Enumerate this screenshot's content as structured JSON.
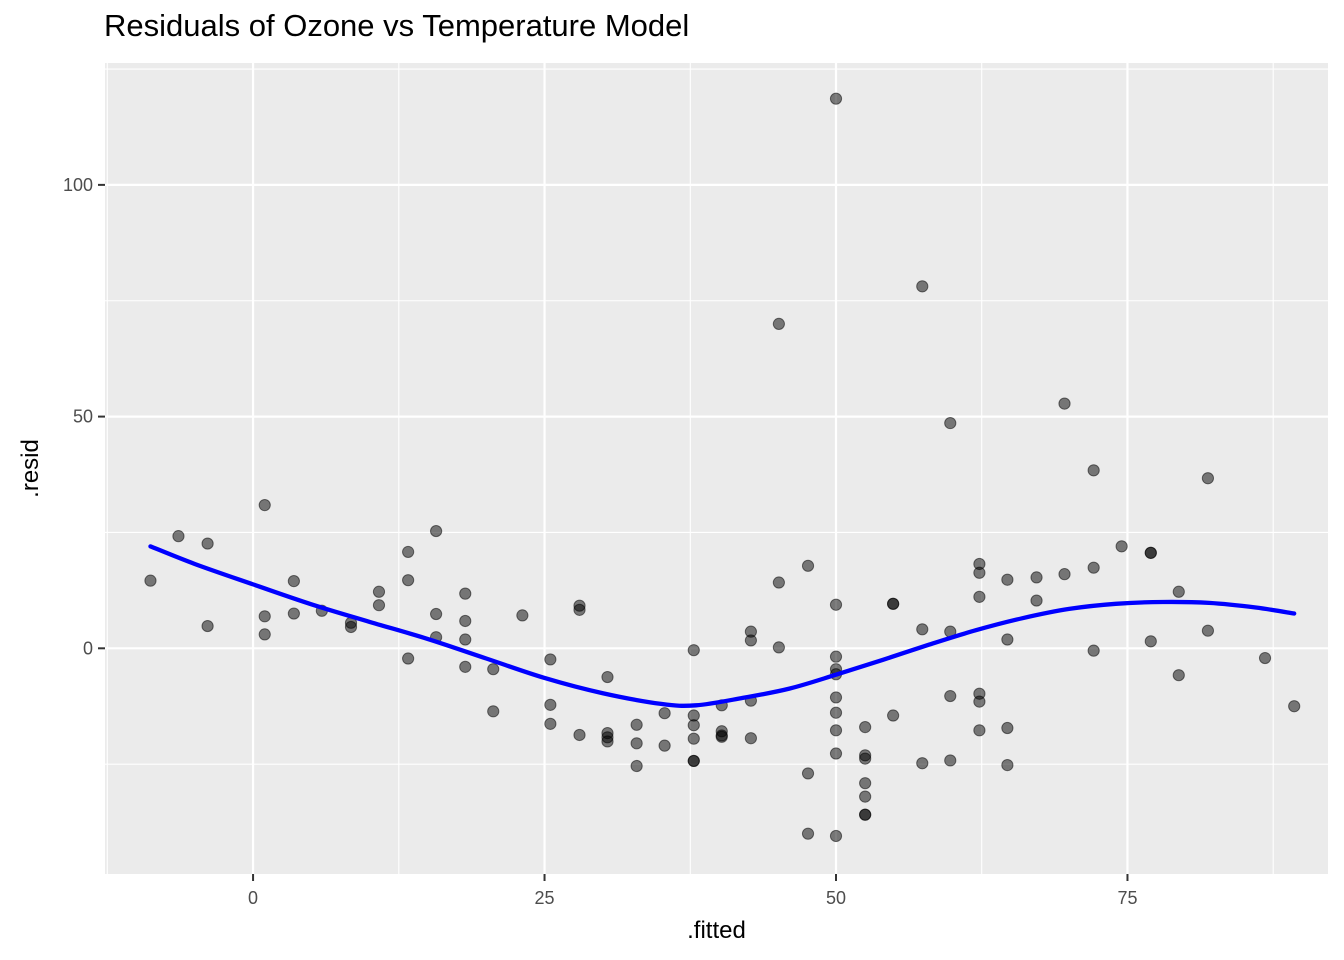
{
  "chart_data": {
    "type": "scatter",
    "title": "Residuals of Ozone vs Temperature Model",
    "xlabel": ".fitted",
    "ylabel": ".resid",
    "xlim": [
      -12.7,
      92.2
    ],
    "ylim": [
      -48.7,
      126.3
    ],
    "x_ticks": [
      0,
      25,
      50,
      75
    ],
    "y_ticks": [
      0,
      50,
      100
    ],
    "x_tick_labels": [
      "0",
      "25",
      "50",
      "75"
    ],
    "y_tick_labels": [
      "0",
      "50",
      "100"
    ],
    "grid": true,
    "colors": {
      "panel": "#ebebeb",
      "grid": "#ffffff",
      "points": "#000000",
      "smooth_line": "#0000ff"
    },
    "point_opacity": 0.5,
    "series": [
      {
        "type": "points",
        "points": [
          [
            -8.8,
            14.6
          ],
          [
            -6.4,
            24.2
          ],
          [
            -3.9,
            22.6
          ],
          [
            -3.9,
            4.8
          ],
          [
            1.0,
            30.9
          ],
          [
            1.0,
            6.9
          ],
          [
            1.0,
            3.0
          ],
          [
            3.5,
            14.5
          ],
          [
            3.5,
            7.5
          ],
          [
            5.9,
            8.1
          ],
          [
            8.4,
            5.5
          ],
          [
            8.4,
            4.6
          ],
          [
            10.8,
            12.2
          ],
          [
            10.8,
            9.3
          ],
          [
            13.3,
            20.8
          ],
          [
            13.3,
            14.7
          ],
          [
            13.3,
            -2.2
          ],
          [
            15.7,
            25.3
          ],
          [
            15.7,
            7.4
          ],
          [
            15.7,
            2.4
          ],
          [
            18.2,
            11.8
          ],
          [
            18.2,
            5.9
          ],
          [
            18.2,
            1.9
          ],
          [
            18.2,
            -4.0
          ],
          [
            20.6,
            -4.5
          ],
          [
            20.6,
            -13.6
          ],
          [
            23.1,
            7.1
          ],
          [
            25.5,
            -2.4
          ],
          [
            25.5,
            -12.2
          ],
          [
            25.5,
            -16.3
          ],
          [
            28.0,
            9.2
          ],
          [
            28.0,
            8.3
          ],
          [
            28.0,
            -18.7
          ],
          [
            30.4,
            -6.2
          ],
          [
            30.4,
            -18.3
          ],
          [
            30.4,
            -19.2
          ],
          [
            30.4,
            -20.1
          ],
          [
            32.9,
            -16.5
          ],
          [
            32.9,
            -20.5
          ],
          [
            32.9,
            -25.4
          ],
          [
            35.3,
            -14.0
          ],
          [
            35.3,
            -21.0
          ],
          [
            37.8,
            -0.4
          ],
          [
            37.8,
            -14.5
          ],
          [
            37.8,
            -16.6
          ],
          [
            37.8,
            -19.5
          ],
          [
            37.8,
            -24.3
          ],
          [
            37.8,
            -24.3
          ],
          [
            40.2,
            -12.3
          ],
          [
            40.2,
            -17.9
          ],
          [
            40.2,
            -18.8
          ],
          [
            40.2,
            -19.1
          ],
          [
            42.7,
            3.6
          ],
          [
            42.7,
            1.7
          ],
          [
            42.7,
            -11.3
          ],
          [
            42.7,
            -19.4
          ],
          [
            45.1,
            70.0
          ],
          [
            45.1,
            14.2
          ],
          [
            45.1,
            0.2
          ],
          [
            47.6,
            17.8
          ],
          [
            47.6,
            -27.0
          ],
          [
            47.6,
            -40.0
          ],
          [
            50.0,
            118.6
          ],
          [
            50.0,
            9.4
          ],
          [
            50.0,
            -1.8
          ],
          [
            50.0,
            -4.5
          ],
          [
            50.0,
            -5.6
          ],
          [
            50.0,
            -10.6
          ],
          [
            50.0,
            -13.9
          ],
          [
            50.0,
            -17.7
          ],
          [
            50.0,
            -22.7
          ],
          [
            50.0,
            -40.5
          ],
          [
            52.5,
            -17.0
          ],
          [
            52.5,
            -23.1
          ],
          [
            52.5,
            -23.8
          ],
          [
            52.5,
            -29.1
          ],
          [
            52.5,
            -32.0
          ],
          [
            52.5,
            -35.9
          ],
          [
            52.5,
            -35.9
          ],
          [
            54.9,
            9.6
          ],
          [
            54.9,
            9.6
          ],
          [
            54.9,
            -14.5
          ],
          [
            57.4,
            78.1
          ],
          [
            57.4,
            4.1
          ],
          [
            57.4,
            -24.8
          ],
          [
            59.8,
            48.6
          ],
          [
            59.8,
            3.6
          ],
          [
            59.8,
            -10.3
          ],
          [
            59.8,
            -24.2
          ],
          [
            62.3,
            18.2
          ],
          [
            62.3,
            16.3
          ],
          [
            62.3,
            11.1
          ],
          [
            62.3,
            -9.8
          ],
          [
            62.3,
            -11.5
          ],
          [
            62.3,
            -17.7
          ],
          [
            64.7,
            14.8
          ],
          [
            64.7,
            1.9
          ],
          [
            64.7,
            -17.2
          ],
          [
            64.7,
            -25.2
          ],
          [
            67.2,
            15.3
          ],
          [
            67.2,
            10.3
          ],
          [
            69.6,
            52.8
          ],
          [
            69.6,
            16.0
          ],
          [
            72.1,
            38.4
          ],
          [
            72.1,
            17.4
          ],
          [
            72.1,
            -0.5
          ],
          [
            74.5,
            22.0
          ],
          [
            77.0,
            20.6
          ],
          [
            77.0,
            20.6
          ],
          [
            77.0,
            1.5
          ],
          [
            79.4,
            12.2
          ],
          [
            79.4,
            -5.8
          ],
          [
            81.9,
            36.7
          ],
          [
            81.9,
            3.8
          ],
          [
            86.8,
            -2.1
          ],
          [
            89.3,
            -12.5
          ]
        ]
      },
      {
        "type": "smooth",
        "points": [
          [
            -8.8,
            22.0
          ],
          [
            -5.0,
            18.2
          ],
          [
            0,
            13.8
          ],
          [
            5,
            9.5
          ],
          [
            10,
            5.7
          ],
          [
            15,
            2.0
          ],
          [
            20,
            -2.2
          ],
          [
            25,
            -6.4
          ],
          [
            30,
            -9.7
          ],
          [
            35,
            -12.0
          ],
          [
            38,
            -12.3
          ],
          [
            42,
            -10.7
          ],
          [
            46,
            -8.7
          ],
          [
            50,
            -5.7
          ],
          [
            54,
            -2.5
          ],
          [
            58,
            0.8
          ],
          [
            62,
            3.9
          ],
          [
            66,
            6.5
          ],
          [
            70,
            8.5
          ],
          [
            74,
            9.6
          ],
          [
            78,
            10.0
          ],
          [
            82,
            9.8
          ],
          [
            86,
            8.8
          ],
          [
            89.3,
            7.5
          ]
        ]
      }
    ]
  }
}
